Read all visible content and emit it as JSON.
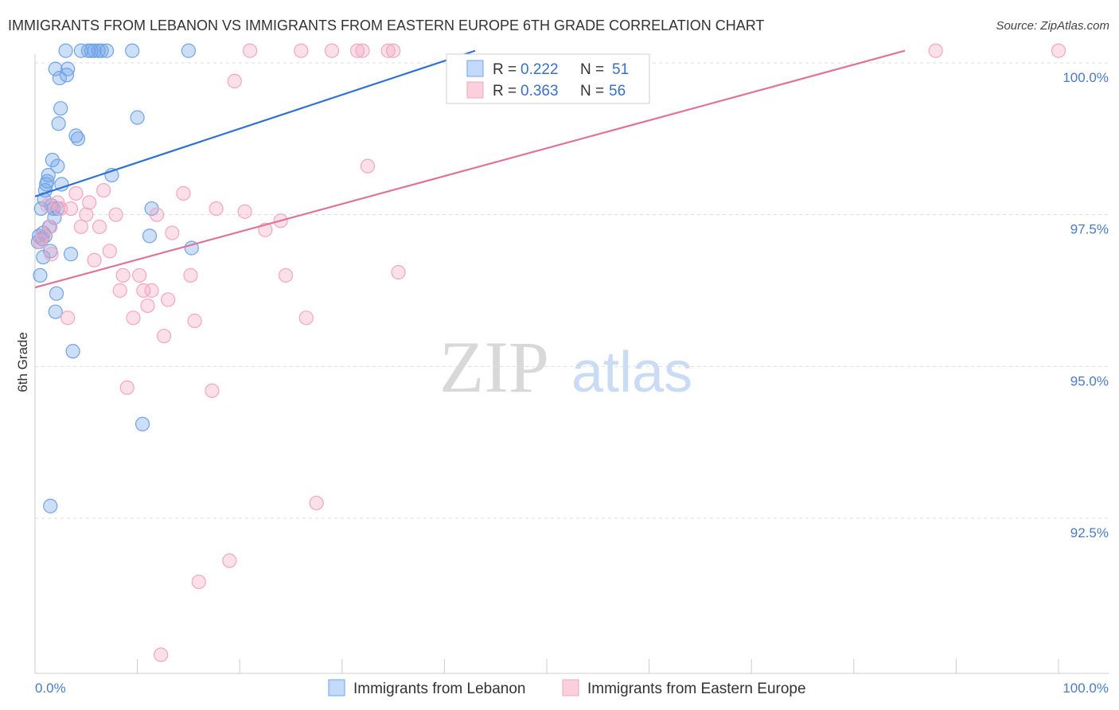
{
  "header": {
    "title": "IMMIGRANTS FROM LEBANON VS IMMIGRANTS FROM EASTERN EUROPE 6TH GRADE CORRELATION CHART",
    "source": "Source: ZipAtlas.com"
  },
  "watermark": {
    "zip": "ZIP",
    "atlas": "atlas"
  },
  "chart_data": {
    "type": "scatter",
    "title": "IMMIGRANTS FROM LEBANON VS IMMIGRANTS FROM EASTERN EUROPE 6TH GRADE CORRELATION CHART",
    "xlabel": "",
    "ylabel": "6th Grade",
    "xlim": [
      0,
      100
    ],
    "ylim": [
      90.2,
      100.4
    ],
    "x_tick_labels": {
      "left": "0.0%",
      "right": "100.0%"
    },
    "y_ticks": [
      {
        "value": 100.0,
        "label": "100.0%"
      },
      {
        "value": 97.5,
        "label": "97.5%"
      },
      {
        "value": 95.0,
        "label": "95.0%"
      },
      {
        "value": 92.5,
        "label": "92.5%"
      }
    ],
    "legend": [
      {
        "r_label": "R = ",
        "r_value": "0.222",
        "n_label": "N = ",
        "n_value": "51"
      },
      {
        "r_label": "R = ",
        "r_value": "0.363",
        "n_label": "N = ",
        "n_value": "56"
      }
    ],
    "series": [
      {
        "name": "Immigrants from Lebanon",
        "color": "#6fa3e8",
        "line_color": "#2f72d4",
        "trend": {
          "x": [
            0,
            43
          ],
          "y": [
            97.8,
            100.2
          ]
        },
        "points": [
          [
            0.3,
            97.05
          ],
          [
            0.4,
            97.15
          ],
          [
            0.5,
            96.5
          ],
          [
            0.6,
            97.6
          ],
          [
            0.7,
            97.1
          ],
          [
            0.8,
            96.8
          ],
          [
            0.9,
            97.75
          ],
          [
            1.0,
            97.9
          ],
          [
            1.1,
            98.0
          ],
          [
            1.2,
            98.05
          ],
          [
            1.3,
            98.15
          ],
          [
            1.4,
            97.3
          ],
          [
            1.5,
            96.9
          ],
          [
            1.6,
            97.65
          ],
          [
            1.7,
            98.4
          ],
          [
            1.8,
            97.6
          ],
          [
            1.9,
            97.45
          ],
          [
            2.0,
            95.9
          ],
          [
            2.1,
            96.2
          ],
          [
            2.2,
            98.3
          ],
          [
            2.3,
            99.0
          ],
          [
            2.4,
            99.75
          ],
          [
            2.5,
            99.25
          ],
          [
            2.6,
            98.0
          ],
          [
            3.0,
            100.2
          ],
          [
            3.2,
            99.9
          ],
          [
            3.1,
            99.8
          ],
          [
            3.5,
            96.85
          ],
          [
            3.7,
            95.25
          ],
          [
            1.5,
            92.7
          ],
          [
            4.0,
            98.8
          ],
          [
            4.2,
            98.75
          ],
          [
            5.5,
            100.2
          ],
          [
            5.8,
            100.2
          ],
          [
            6.2,
            100.2
          ],
          [
            6.5,
            100.2
          ],
          [
            7.0,
            100.2
          ],
          [
            7.5,
            98.15
          ],
          [
            9.5,
            100.2
          ],
          [
            10.0,
            99.1
          ],
          [
            10.5,
            94.05
          ],
          [
            11.2,
            97.15
          ],
          [
            11.4,
            97.6
          ],
          [
            15.0,
            100.2
          ],
          [
            15.3,
            96.95
          ],
          [
            4.5,
            100.2
          ],
          [
            5.2,
            100.2
          ],
          [
            2.0,
            99.9
          ],
          [
            1.0,
            97.15
          ],
          [
            2.2,
            97.6
          ],
          [
            0.8,
            97.2
          ]
        ]
      },
      {
        "name": "Immigrants from Eastern Europe",
        "color": "#f4a6bf",
        "line_color": "#e0739a",
        "trend": {
          "x": [
            0,
            85
          ],
          "y": [
            96.3,
            100.2
          ]
        },
        "points": [
          [
            0.5,
            97.05
          ],
          [
            0.8,
            97.15
          ],
          [
            1.2,
            97.65
          ],
          [
            1.5,
            97.3
          ],
          [
            1.6,
            96.85
          ],
          [
            2.2,
            97.7
          ],
          [
            2.5,
            97.6
          ],
          [
            3.2,
            95.8
          ],
          [
            4.0,
            97.85
          ],
          [
            4.5,
            97.3
          ],
          [
            5.0,
            97.5
          ],
          [
            5.3,
            97.7
          ],
          [
            5.8,
            96.75
          ],
          [
            6.3,
            97.3
          ],
          [
            6.7,
            97.9
          ],
          [
            7.3,
            96.9
          ],
          [
            7.9,
            97.5
          ],
          [
            8.3,
            96.25
          ],
          [
            8.6,
            96.5
          ],
          [
            9.0,
            94.65
          ],
          [
            9.6,
            95.8
          ],
          [
            10.2,
            96.5
          ],
          [
            10.6,
            96.25
          ],
          [
            11.0,
            96.0
          ],
          [
            11.4,
            96.25
          ],
          [
            11.9,
            97.5
          ],
          [
            12.3,
            90.25
          ],
          [
            12.6,
            95.5
          ],
          [
            13.0,
            96.1
          ],
          [
            13.4,
            97.2
          ],
          [
            14.5,
            97.85
          ],
          [
            15.2,
            96.5
          ],
          [
            15.6,
            95.75
          ],
          [
            16.0,
            91.45
          ],
          [
            17.3,
            94.6
          ],
          [
            17.7,
            97.6
          ],
          [
            19.0,
            91.8
          ],
          [
            19.5,
            99.7
          ],
          [
            20.5,
            97.55
          ],
          [
            21.0,
            100.2
          ],
          [
            22.5,
            97.25
          ],
          [
            24.0,
            97.4
          ],
          [
            24.5,
            96.5
          ],
          [
            26.0,
            100.2
          ],
          [
            26.5,
            95.8
          ],
          [
            27.5,
            92.75
          ],
          [
            29.0,
            100.2
          ],
          [
            31.5,
            100.2
          ],
          [
            32.0,
            100.2
          ],
          [
            32.5,
            98.3
          ],
          [
            34.5,
            100.2
          ],
          [
            35.0,
            100.2
          ],
          [
            35.5,
            96.55
          ],
          [
            88.0,
            100.2
          ],
          [
            100.0,
            100.2
          ],
          [
            3.5,
            97.6
          ]
        ]
      }
    ]
  }
}
